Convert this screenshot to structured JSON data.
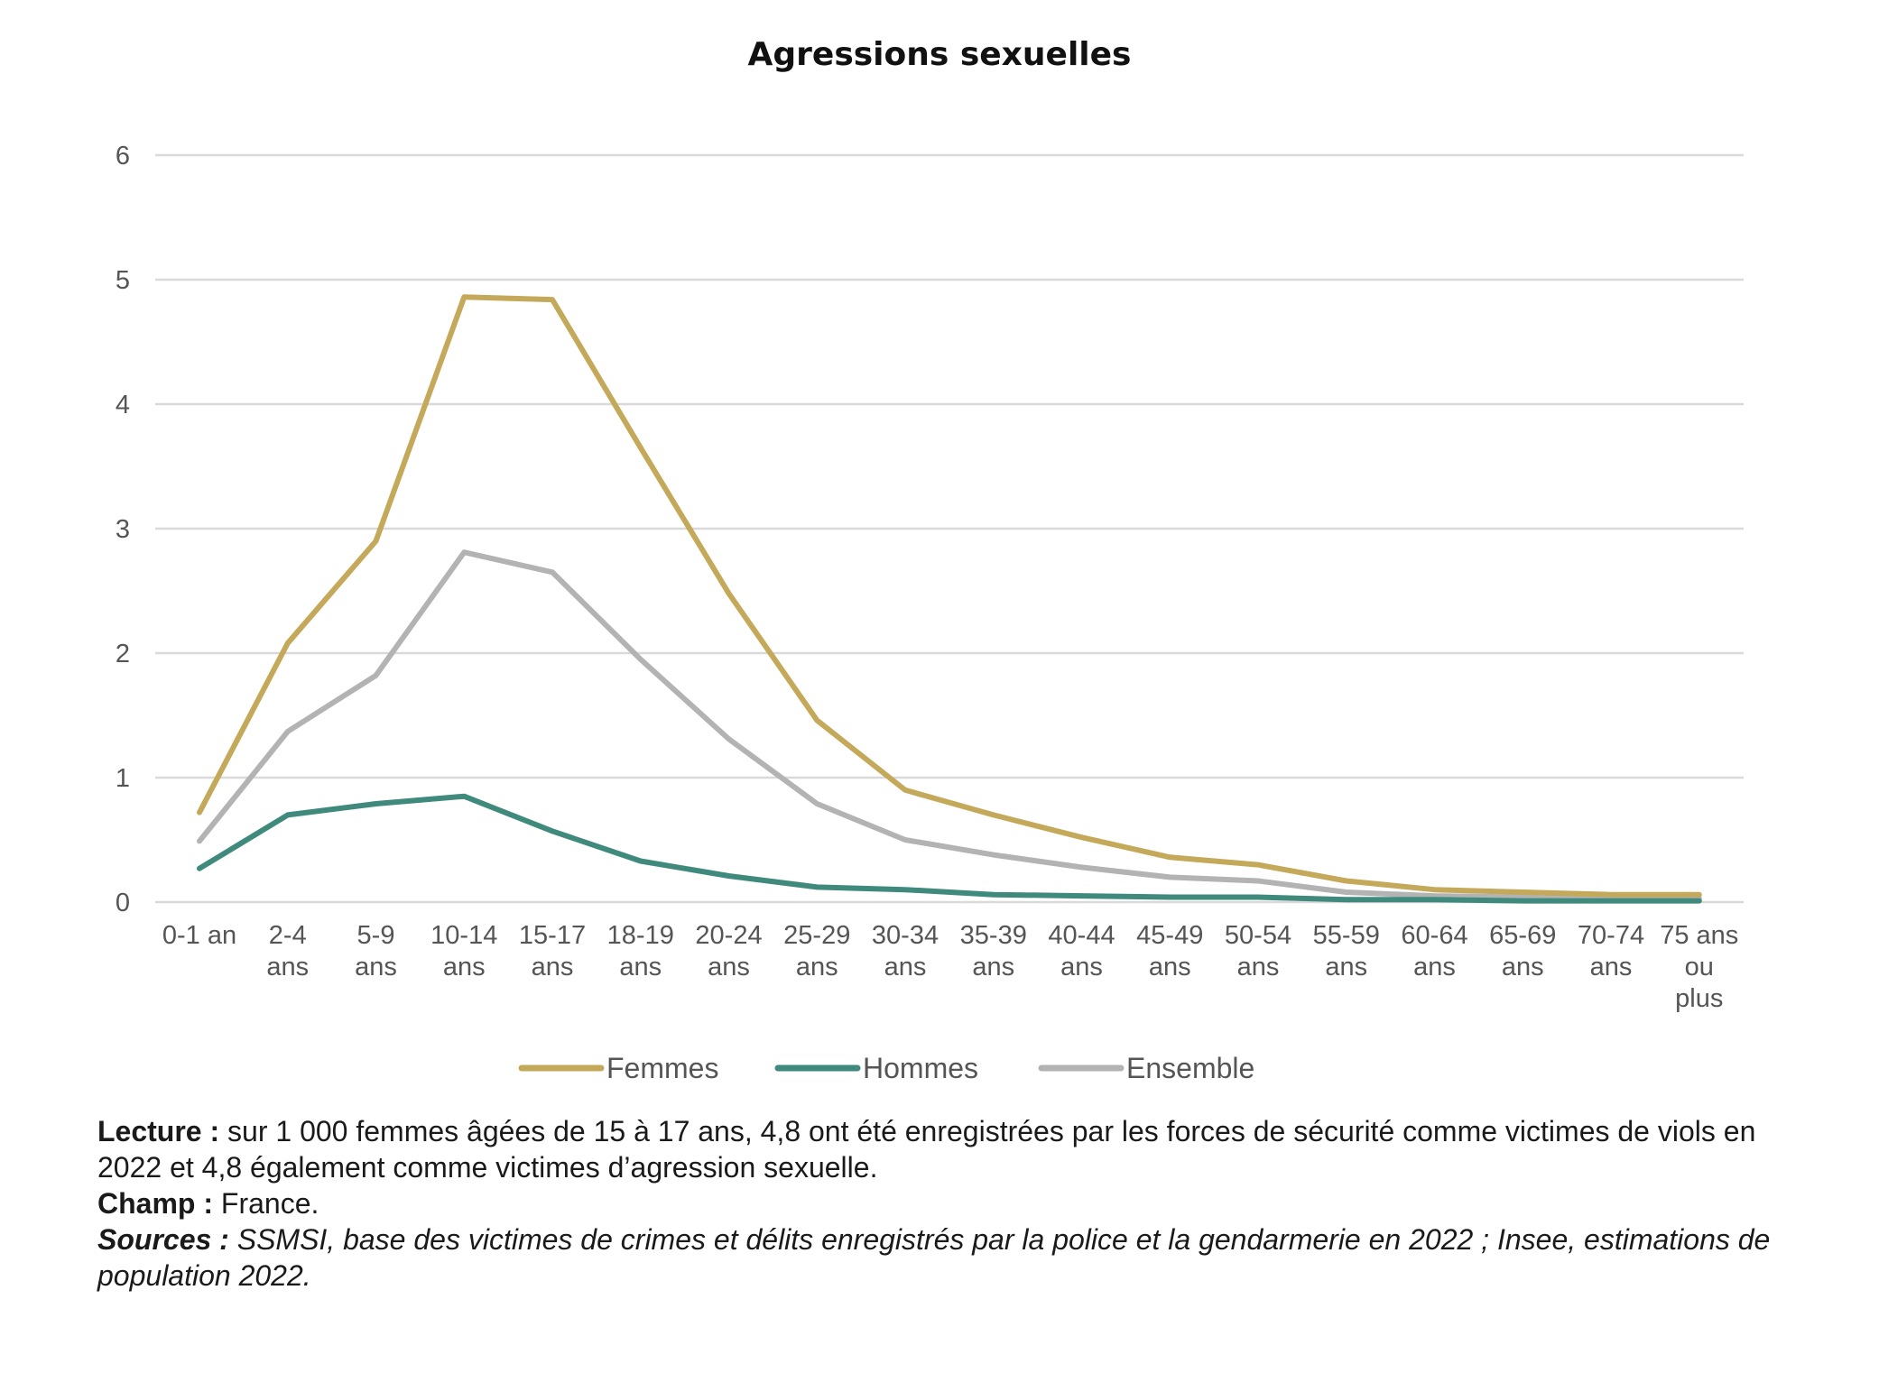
{
  "chart_data": {
    "type": "line",
    "title": "Agressions sexuelles",
    "xlabel": "",
    "ylabel": "",
    "ylim": [
      0,
      6
    ],
    "yticks": [
      "0",
      "1",
      "2",
      "3",
      "4",
      "5",
      "6"
    ],
    "grid": true,
    "legend_position": "bottom",
    "categories": [
      [
        "0-1 an"
      ],
      [
        "2-4",
        "ans"
      ],
      [
        "5-9",
        "ans"
      ],
      [
        "10-14",
        "ans"
      ],
      [
        "15-17",
        "ans"
      ],
      [
        "18-19",
        "ans"
      ],
      [
        "20-24",
        "ans"
      ],
      [
        "25-29",
        "ans"
      ],
      [
        "30-34",
        "ans"
      ],
      [
        "35-39",
        "ans"
      ],
      [
        "40-44",
        "ans"
      ],
      [
        "45-49",
        "ans"
      ],
      [
        "50-54",
        "ans"
      ],
      [
        "55-59",
        "ans"
      ],
      [
        "60-64",
        "ans"
      ],
      [
        "65-69",
        "ans"
      ],
      [
        "70-74",
        "ans"
      ],
      [
        "75 ans",
        "ou",
        "plus"
      ]
    ],
    "series": [
      {
        "name": "Femmes",
        "color": "#c5a95a",
        "values": [
          0.72,
          2.08,
          2.9,
          4.86,
          4.84,
          3.65,
          2.48,
          1.46,
          0.9,
          0.7,
          0.52,
          0.36,
          0.3,
          0.17,
          0.1,
          0.08,
          0.06,
          0.06
        ]
      },
      {
        "name": "Hommes",
        "color": "#3f8a7d",
        "values": [
          0.27,
          0.7,
          0.79,
          0.85,
          0.57,
          0.33,
          0.21,
          0.12,
          0.1,
          0.06,
          0.05,
          0.04,
          0.04,
          0.02,
          0.02,
          0.01,
          0.01,
          0.01
        ]
      },
      {
        "name": "Ensemble",
        "color": "#b3b3b3",
        "values": [
          0.49,
          1.37,
          1.82,
          2.81,
          2.65,
          1.95,
          1.31,
          0.79,
          0.5,
          0.38,
          0.28,
          0.2,
          0.17,
          0.08,
          0.05,
          0.04,
          0.03,
          0.03
        ]
      }
    ]
  },
  "notes": {
    "lecture_label": "Lecture :",
    "lecture_text": " sur 1 000 femmes âgées de 15 à 17 ans, 4,8 ont été enregistrées par les forces de sécurité comme victimes de viols en 2022 et 4,8 également comme victimes d’agression sexuelle.",
    "champ_label": "Champ :",
    "champ_text": " France.",
    "sources_label": "Sources :",
    "sources_text": " SSMSI, base des victimes de crimes et délits enregistrés par la police et la gendarmerie en 2022 ; Insee, estimations de population 2022."
  }
}
